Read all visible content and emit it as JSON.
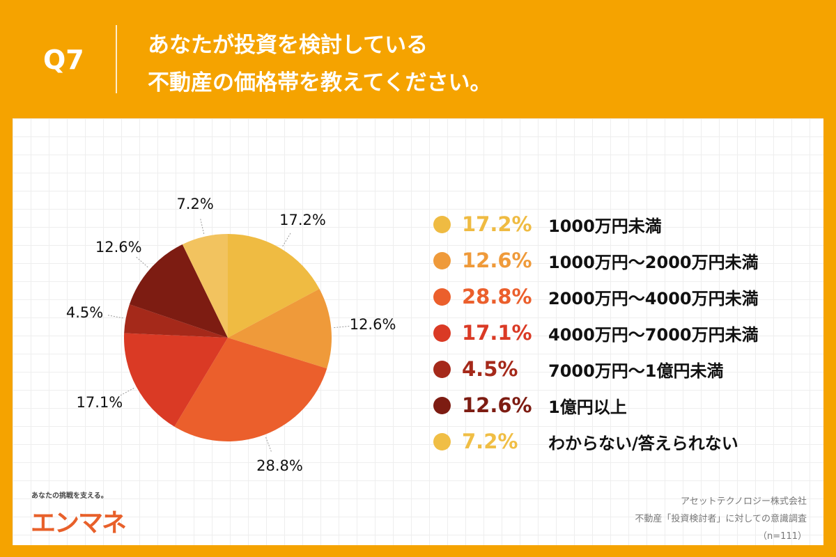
{
  "header": {
    "q": "Q7",
    "title_line1": "あなたが投資を検討している",
    "title_line2": "不動産の価格帯を教えてください。"
  },
  "chart_data": {
    "type": "pie",
    "start": "top",
    "direction": "clockwise",
    "legend_placement": "right",
    "categories": [
      "1000万円未満",
      "1000万円〜2000万円未満",
      "2000万円〜4000万円未満",
      "4000万円〜7000万円未満",
      "7000万円〜1億円未満",
      "1億円以上",
      "わからない/答えられない"
    ],
    "values": [
      17.2,
      12.6,
      28.8,
      17.1,
      4.5,
      12.6,
      7.2
    ],
    "labels": [
      "17.2%",
      "12.6%",
      "28.8%",
      "17.1%",
      "4.5%",
      "12.6%",
      "7.2%"
    ],
    "colors": [
      "#EFBB42",
      "#EF9A3A",
      "#EB5F2C",
      "#DA3A25",
      "#A5291A",
      "#7D1C12",
      "#F2C35F"
    ],
    "legend_colors": [
      "#EFBB42",
      "#EF9A3A",
      "#EB5F2C",
      "#DA3A25",
      "#A5291A",
      "#7D1C12",
      "#F0BE45"
    ]
  },
  "footer": {
    "tagline": "あなたの挑戦を支える。",
    "logo": "エンマネ",
    "company": "アセットテクノロジー株式会社",
    "survey": "不動産「投資検討者」に対しての意識調査",
    "n": "（n=111）"
  }
}
